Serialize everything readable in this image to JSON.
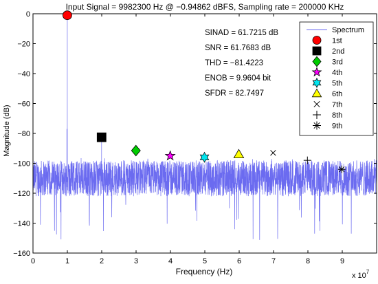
{
  "chart_data": {
    "type": "line",
    "title": "Input Signal = 9982300 Hz @ −0.94862 dBFS, Sampling rate = 200000 KHz",
    "xlabel": "Frequency (Hz)",
    "ylabel": "Magnitude (dB)",
    "x_exponent_label": "x 10",
    "x_exponent_power": "7",
    "xlim": [
      0,
      10
    ],
    "ylim": [
      -160,
      0
    ],
    "x_ticks": [
      0,
      1,
      2,
      3,
      4,
      5,
      6,
      7,
      8,
      9
    ],
    "y_ticks": [
      0,
      -20,
      -40,
      -60,
      -80,
      -100,
      -120,
      -140,
      -160
    ],
    "x_tick_labels": [
      "0",
      "1",
      "2",
      "3",
      "4",
      "5",
      "6",
      "7",
      "8",
      "9"
    ],
    "y_tick_labels": [
      "0",
      "−20",
      "−40",
      "−60",
      "−80",
      "−100",
      "−120",
      "−140",
      "−160"
    ],
    "grid": false,
    "spectrum": {
      "name": "Spectrum",
      "color": "#6b6bf0",
      "noise_floor_db": -110,
      "noise_spread_db": 12,
      "spikes": [
        {
          "x": 0.0,
          "y": -52
        },
        {
          "x": 0.998,
          "y": -1
        },
        {
          "x": 0.985,
          "y": -77
        },
        {
          "x": 1.996,
          "y": -83
        }
      ]
    },
    "harmonics": [
      {
        "name": "1st",
        "x": 0.998,
        "y": -1,
        "marker": "circle",
        "color": "#ff0000"
      },
      {
        "name": "2nd",
        "x": 1.996,
        "y": -82.6,
        "marker": "square",
        "color": "#000000"
      },
      {
        "name": "3rd",
        "x": 2.995,
        "y": -91.5,
        "marker": "diamond",
        "color": "#00cc00"
      },
      {
        "name": "4th",
        "x": 3.993,
        "y": -95,
        "marker": "star",
        "color": "#ff00ff"
      },
      {
        "name": "5th",
        "x": 4.991,
        "y": -96,
        "marker": "hexagram",
        "color": "#00e5ee"
      },
      {
        "name": "6th",
        "x": 5.989,
        "y": -94,
        "marker": "triangle",
        "color": "#ffff00"
      },
      {
        "name": "7th",
        "x": 6.988,
        "y": -93,
        "marker": "x",
        "color": "#000000"
      },
      {
        "name": "8th",
        "x": 7.986,
        "y": -98,
        "marker": "plus",
        "color": "#000000"
      },
      {
        "name": "9th",
        "x": 8.984,
        "y": -104,
        "marker": "asterisk",
        "color": "#000000"
      }
    ],
    "annotations": [
      "SINAD = 61.7215 dB",
      "SNR = 61.7683 dB",
      "THD = −81.4223",
      "ENOB = 9.9604 bit",
      "SFDR = 82.7497"
    ],
    "legend_position": "top-right"
  }
}
